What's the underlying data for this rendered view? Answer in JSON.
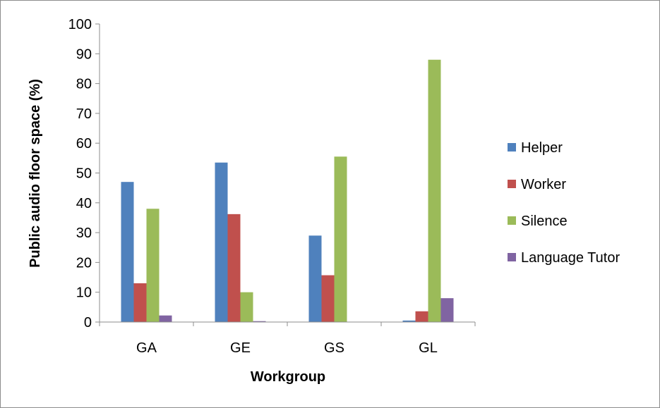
{
  "chart_data": {
    "type": "bar",
    "title": "",
    "xlabel": "Workgroup",
    "ylabel": "Public audio floor  space (%)",
    "ylim": [
      0,
      100
    ],
    "yticks": [
      "0",
      "10",
      "20",
      "30",
      "40",
      "50",
      "60",
      "70",
      "80",
      "90",
      "100"
    ],
    "categories": [
      "GA",
      "GE",
      "GS",
      "GL"
    ],
    "series": [
      {
        "name": "Helper",
        "color": "#4F81BD",
        "values": [
          47,
          53.5,
          29,
          0.5
        ]
      },
      {
        "name": "Worker",
        "color": "#C0504D",
        "values": [
          13,
          36.2,
          15.7,
          3.6
        ]
      },
      {
        "name": "Silence",
        "color": "#9BBB59",
        "values": [
          38,
          10,
          55.5,
          88
        ]
      },
      {
        "name": "Language Tutor",
        "color": "#8064A2",
        "values": [
          2.2,
          0.3,
          0,
          8
        ]
      }
    ],
    "grid": false,
    "legend_position": "right"
  }
}
